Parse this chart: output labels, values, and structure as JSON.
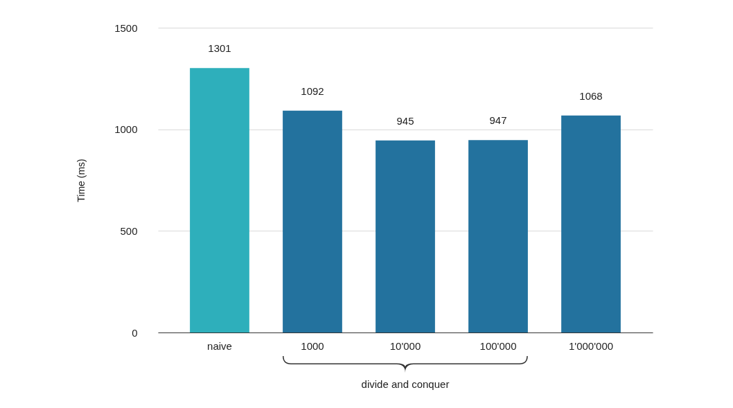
{
  "chart_data": {
    "type": "bar",
    "ylabel": "Time (ms)",
    "categories": [
      "naive",
      "1000",
      "10'000",
      "100'000",
      "1'000'000"
    ],
    "values": [
      1301,
      1092,
      945,
      947,
      1068
    ],
    "colors": [
      "#2eafbb",
      "#23729e",
      "#23729e",
      "#23729e",
      "#23729e"
    ],
    "ylim": [
      0,
      1500
    ],
    "yticks": [
      0,
      500,
      1000,
      1500
    ],
    "grid": "y",
    "data_labels": true,
    "annotations": [
      "divide and conquer"
    ]
  }
}
